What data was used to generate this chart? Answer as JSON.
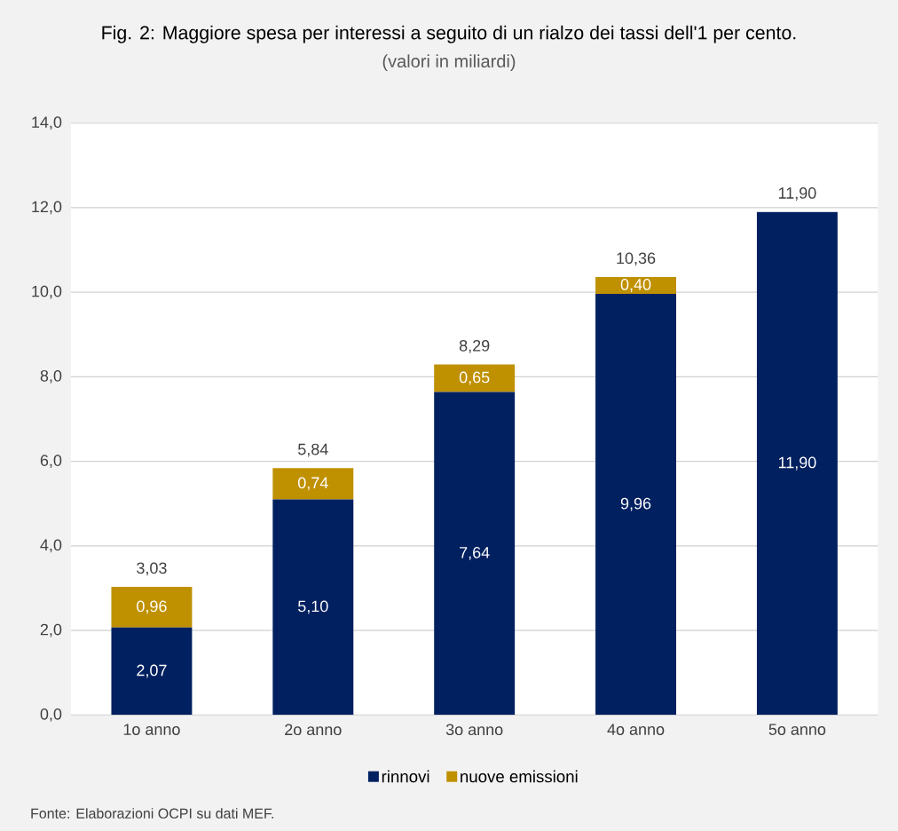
{
  "chart_data": {
    "type": "bar",
    "stacked": true,
    "title": "Fig. 2: Maggiore spesa per interessi a seguito di un rialzo dei tassi dell'1 per cento.",
    "subtitle": "(valori in miliardi)",
    "categories": [
      "1o anno",
      "2o anno",
      "3o anno",
      "4o anno",
      "5o anno"
    ],
    "series": [
      {
        "name": "rinnovi",
        "color": "#002060",
        "values": [
          2.07,
          5.1,
          7.64,
          9.96,
          11.9
        ],
        "value_labels": [
          "2,07",
          "5,10",
          "7,64",
          "9,96",
          "11,90"
        ]
      },
      {
        "name": "nuove emissioni",
        "color": "#BF9000",
        "values": [
          0.96,
          0.74,
          0.65,
          0.4,
          null
        ],
        "value_labels": [
          "0,96",
          "0,74",
          "0,65",
          "0,40",
          null
        ]
      }
    ],
    "totals": [
      "3,03",
      "5,84",
      "8,29",
      "10,36",
      "11,90"
    ],
    "ylim": [
      0,
      14
    ],
    "yticks": [
      {
        "value": 0,
        "label": "0,0"
      },
      {
        "value": 2,
        "label": "2,0"
      },
      {
        "value": 4,
        "label": "4,0"
      },
      {
        "value": 6,
        "label": "6,0"
      },
      {
        "value": 8,
        "label": "8,0"
      },
      {
        "value": 10,
        "label": "10,0"
      },
      {
        "value": 12,
        "label": "12,0"
      },
      {
        "value": 14,
        "label": "14,0"
      }
    ],
    "grid": "y",
    "legend": "bottom",
    "annotations": [
      "Fonte: Elaborazioni OCPI su dati MEF."
    ]
  }
}
